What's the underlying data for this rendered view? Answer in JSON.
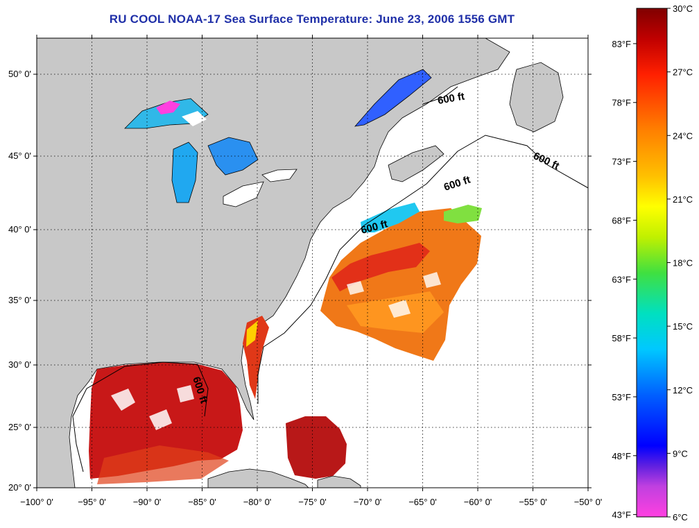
{
  "title": "RU COOL  NOAA-17  Sea Surface Temperature:  June 23, 2006 1556 GMT",
  "axes": {
    "lon_labels": [
      "−100° 0'",
      "−95° 0'",
      "−90° 0'",
      "−85° 0'",
      "−80° 0'",
      "−75° 0'",
      "−70° 0'",
      "−65° 0'",
      "−60° 0'",
      "−55° 0'",
      "−50° 0'"
    ],
    "lat_labels": [
      "20° 0'",
      "25° 0'",
      "30° 0'",
      "35° 0'",
      "40° 0'",
      "45° 0'",
      "50° 0'"
    ]
  },
  "contours": [
    "600 ft",
    "600 ft",
    "600 ft",
    "600 ft",
    "600 ft"
  ],
  "colorbar": {
    "celsius": [
      "30°C",
      "27°C",
      "24°C",
      "21°C",
      "18°C",
      "15°C",
      "12°C",
      "9°C",
      "6°C"
    ],
    "fahrenheit": [
      "83°F",
      "78°F",
      "73°F",
      "68°F",
      "63°F",
      "58°F",
      "53°F",
      "48°F",
      "43°F"
    ],
    "colors": [
      "#ff40e0",
      "#8040e0",
      "#0000ff",
      "#0060ff",
      "#00c0ff",
      "#00e0c0",
      "#40e040",
      "#c0f000",
      "#ffff00",
      "#ffc000",
      "#ff8000",
      "#ff3000",
      "#e00000",
      "#a00000",
      "#800000"
    ]
  },
  "colors": {
    "land": "#c8c8c8",
    "ocean_no_data": "#ffffff",
    "title": "#1f2fa8"
  }
}
